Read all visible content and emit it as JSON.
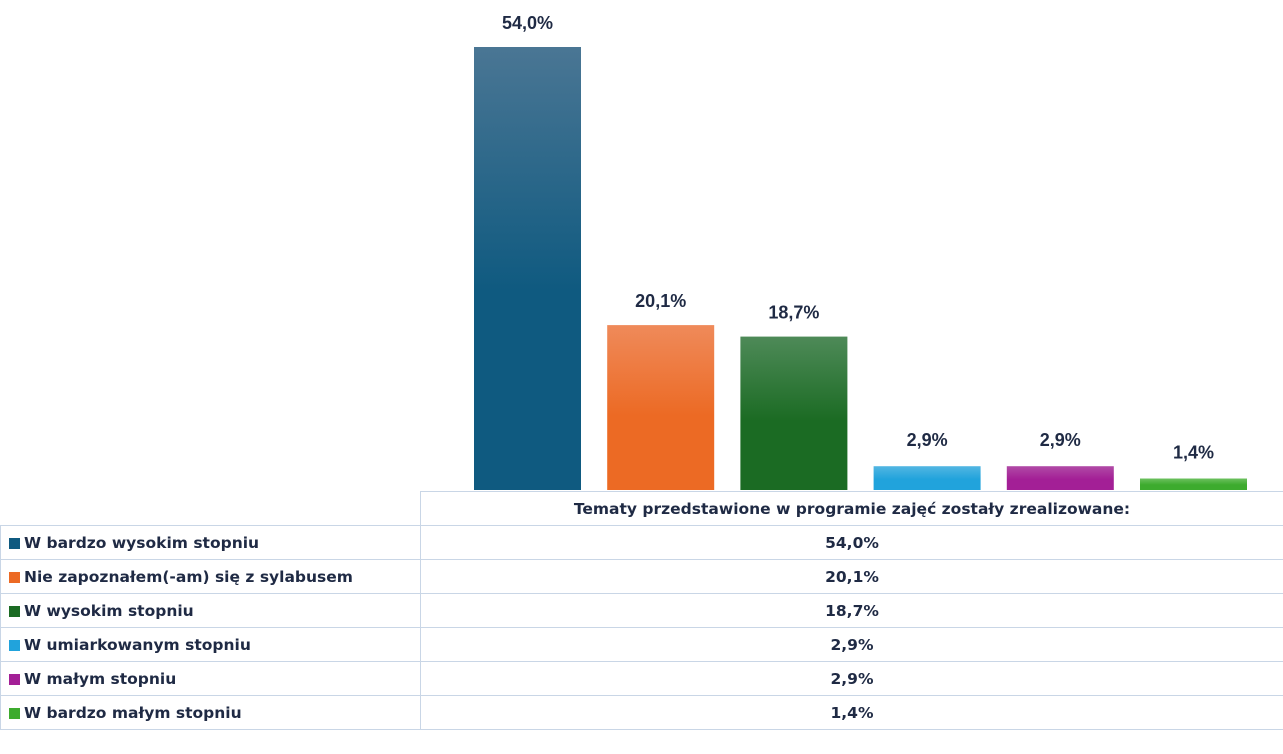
{
  "chart_data": {
    "type": "bar",
    "title": "",
    "xlabel": "",
    "ylabel": "",
    "ylim": [
      0,
      54
    ],
    "grid": false,
    "table_header": "Tematy przedstawione w programie zajęć zostały zrealizowane:",
    "categories": [
      "W bardzo wysokim stopniu",
      "Nie zapoznałem(-am) się z sylabusem",
      "W wysokim  stopniu",
      "W umiarkowanym stopniu",
      "W małym stopniu",
      "W bardzo małym stopniu"
    ],
    "values": [
      54.0,
      20.1,
      18.7,
      2.9,
      2.9,
      1.4
    ],
    "value_labels": [
      "54,0%",
      "20,1%",
      "18,7%",
      "2,9%",
      "2,9%",
      "1,4%"
    ],
    "colors": [
      "#0f5a80",
      "#ec6a24",
      "#1b6b23",
      "#21a3dc",
      "#a31f96",
      "#3dab2e"
    ],
    "colors_light": [
      "#4a7694",
      "#ef8a5a",
      "#4e8a58",
      "#52b6e2",
      "#b04aa6",
      "#6cc05e"
    ]
  }
}
